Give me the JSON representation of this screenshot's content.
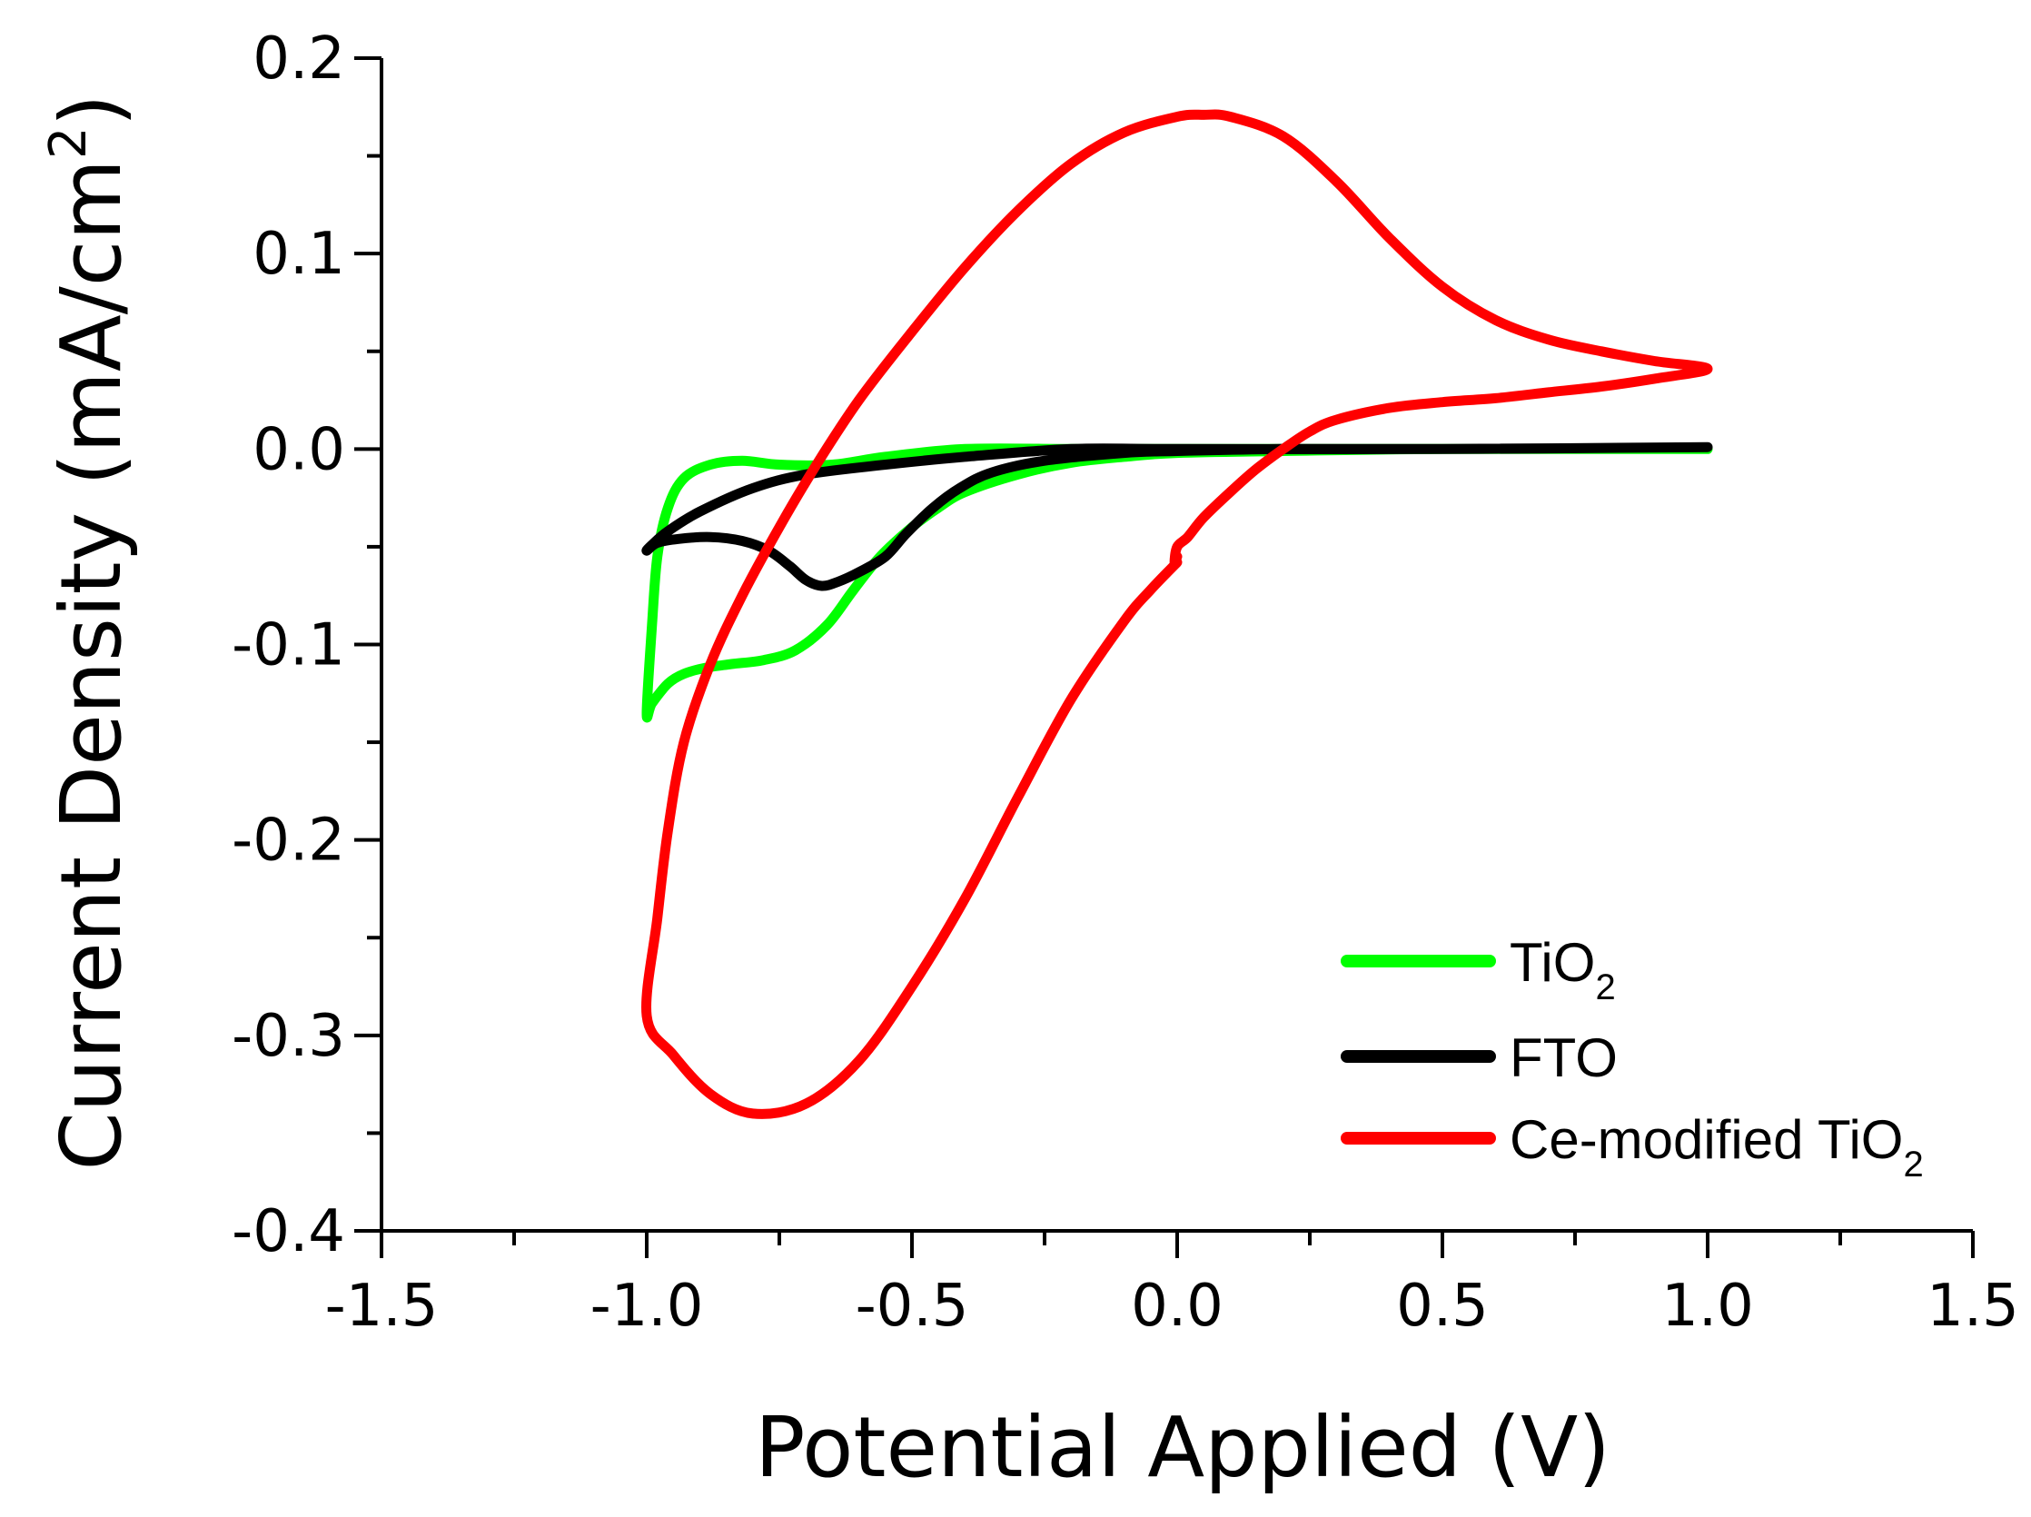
{
  "chart_data": {
    "type": "line",
    "title": "",
    "xlabel": "Potential Applied (V)",
    "ylabel": {
      "main": "Current Density (mA/cm",
      "sup": "2",
      "end": ")"
    },
    "xlim": [
      -1.5,
      1.5
    ],
    "ylim": [
      -0.4,
      0.2
    ],
    "x_ticks": [
      -1.5,
      -1.0,
      -0.5,
      0.0,
      0.5,
      1.0,
      1.5
    ],
    "x_tick_labels": [
      "-1.5",
      "-1.0",
      "-0.5",
      "0.0",
      "0.5",
      "1.0",
      "1.5"
    ],
    "x_minor_ticks": [
      -1.25,
      -0.75,
      -0.25,
      0.25,
      0.75,
      1.25
    ],
    "y_ticks": [
      -0.4,
      -0.3,
      -0.2,
      -0.1,
      0.0,
      0.1,
      0.2
    ],
    "y_tick_labels": [
      "-0.4",
      "-0.3",
      "-0.2",
      "-0.1",
      "0.0",
      "0.1",
      "0.2"
    ],
    "y_minor_ticks": [
      -0.35,
      -0.25,
      -0.15,
      -0.05,
      0.05,
      0.15
    ],
    "grid": false,
    "legend_position": "bottom-right",
    "series": [
      {
        "name": "TiO2",
        "label_main": "TiO",
        "label_sub": "2",
        "color": "#00ff00",
        "points": [
          [
            1.0,
            0.0
          ],
          [
            0.5,
            0.0
          ],
          [
            0.0,
            0.0
          ],
          [
            -0.2,
            0.0
          ],
          [
            -0.4,
            0.0
          ],
          [
            -0.55,
            -0.004
          ],
          [
            -0.65,
            -0.008
          ],
          [
            -0.75,
            -0.008
          ],
          [
            -0.82,
            -0.006
          ],
          [
            -0.88,
            -0.008
          ],
          [
            -0.93,
            -0.015
          ],
          [
            -0.96,
            -0.03
          ],
          [
            -0.98,
            -0.055
          ],
          [
            -0.99,
            -0.09
          ],
          [
            -1.0,
            -0.135
          ],
          [
            -0.99,
            -0.13
          ],
          [
            -0.96,
            -0.12
          ],
          [
            -0.93,
            -0.115
          ],
          [
            -0.89,
            -0.112
          ],
          [
            -0.84,
            -0.11
          ],
          [
            -0.78,
            -0.108
          ],
          [
            -0.72,
            -0.103
          ],
          [
            -0.66,
            -0.09
          ],
          [
            -0.61,
            -0.072
          ],
          [
            -0.56,
            -0.055
          ],
          [
            -0.5,
            -0.04
          ],
          [
            -0.45,
            -0.03
          ],
          [
            -0.4,
            -0.022
          ],
          [
            -0.3,
            -0.013
          ],
          [
            -0.2,
            -0.007
          ],
          [
            -0.1,
            -0.004
          ],
          [
            0.0,
            -0.002
          ],
          [
            0.2,
            -0.001
          ],
          [
            0.5,
            0.0
          ],
          [
            1.0,
            0.0
          ]
        ]
      },
      {
        "name": "FTO",
        "label_main": "FTO",
        "label_sub": "",
        "color": "#000000",
        "points": [
          [
            1.0,
            0.001
          ],
          [
            0.5,
            0.0
          ],
          [
            0.0,
            0.0
          ],
          [
            -0.2,
            0.0
          ],
          [
            -0.4,
            -0.004
          ],
          [
            -0.55,
            -0.008
          ],
          [
            -0.7,
            -0.013
          ],
          [
            -0.8,
            -0.02
          ],
          [
            -0.9,
            -0.032
          ],
          [
            -0.96,
            -0.042
          ],
          [
            -0.99,
            -0.049
          ],
          [
            -1.0,
            -0.052
          ],
          [
            -0.98,
            -0.048
          ],
          [
            -0.94,
            -0.046
          ],
          [
            -0.88,
            -0.045
          ],
          [
            -0.82,
            -0.047
          ],
          [
            -0.77,
            -0.052
          ],
          [
            -0.73,
            -0.06
          ],
          [
            -0.7,
            -0.067
          ],
          [
            -0.67,
            -0.07
          ],
          [
            -0.64,
            -0.068
          ],
          [
            -0.6,
            -0.063
          ],
          [
            -0.55,
            -0.055
          ],
          [
            -0.51,
            -0.043
          ],
          [
            -0.46,
            -0.03
          ],
          [
            -0.41,
            -0.02
          ],
          [
            -0.35,
            -0.012
          ],
          [
            -0.25,
            -0.006
          ],
          [
            -0.1,
            -0.002
          ],
          [
            0.0,
            -0.001
          ],
          [
            0.2,
            0.0
          ],
          [
            0.5,
            0.0
          ],
          [
            1.0,
            0.001
          ]
        ]
      },
      {
        "name": "Ce-modified TiO2",
        "label_main": "Ce-modified TiO",
        "label_sub": "2",
        "color": "#ff0000",
        "points": [
          [
            0.0,
            -0.058
          ],
          [
            -0.05,
            -0.072
          ],
          [
            -0.1,
            -0.088
          ],
          [
            -0.2,
            -0.128
          ],
          [
            -0.3,
            -0.178
          ],
          [
            -0.4,
            -0.23
          ],
          [
            -0.5,
            -0.275
          ],
          [
            -0.6,
            -0.313
          ],
          [
            -0.7,
            -0.335
          ],
          [
            -0.8,
            -0.34
          ],
          [
            -0.88,
            -0.33
          ],
          [
            -0.95,
            -0.31
          ],
          [
            -1.0,
            -0.29
          ],
          [
            -0.98,
            -0.24
          ],
          [
            -0.96,
            -0.195
          ],
          [
            -0.93,
            -0.15
          ],
          [
            -0.88,
            -0.11
          ],
          [
            -0.82,
            -0.075
          ],
          [
            -0.75,
            -0.04
          ],
          [
            -0.68,
            -0.008
          ],
          [
            -0.6,
            0.025
          ],
          [
            -0.5,
            0.06
          ],
          [
            -0.4,
            0.093
          ],
          [
            -0.3,
            0.122
          ],
          [
            -0.2,
            0.146
          ],
          [
            -0.1,
            0.162
          ],
          [
            0.0,
            0.17
          ],
          [
            0.05,
            0.171
          ],
          [
            0.1,
            0.17
          ],
          [
            0.2,
            0.16
          ],
          [
            0.3,
            0.137
          ],
          [
            0.4,
            0.108
          ],
          [
            0.5,
            0.083
          ],
          [
            0.6,
            0.066
          ],
          [
            0.7,
            0.056
          ],
          [
            0.8,
            0.05
          ],
          [
            0.9,
            0.045
          ],
          [
            1.0,
            0.041
          ],
          [
            0.9,
            0.036
          ],
          [
            0.8,
            0.032
          ],
          [
            0.7,
            0.029
          ],
          [
            0.6,
            0.026
          ],
          [
            0.5,
            0.024
          ],
          [
            0.4,
            0.021
          ],
          [
            0.3,
            0.015
          ],
          [
            0.25,
            0.009
          ],
          [
            0.2,
            0.0
          ],
          [
            0.15,
            -0.01
          ],
          [
            0.1,
            -0.022
          ],
          [
            0.05,
            -0.035
          ],
          [
            0.02,
            -0.045
          ],
          [
            0.0,
            -0.05
          ],
          [
            -0.005,
            -0.058
          ],
          [
            0.0,
            -0.055
          ]
        ]
      }
    ]
  }
}
